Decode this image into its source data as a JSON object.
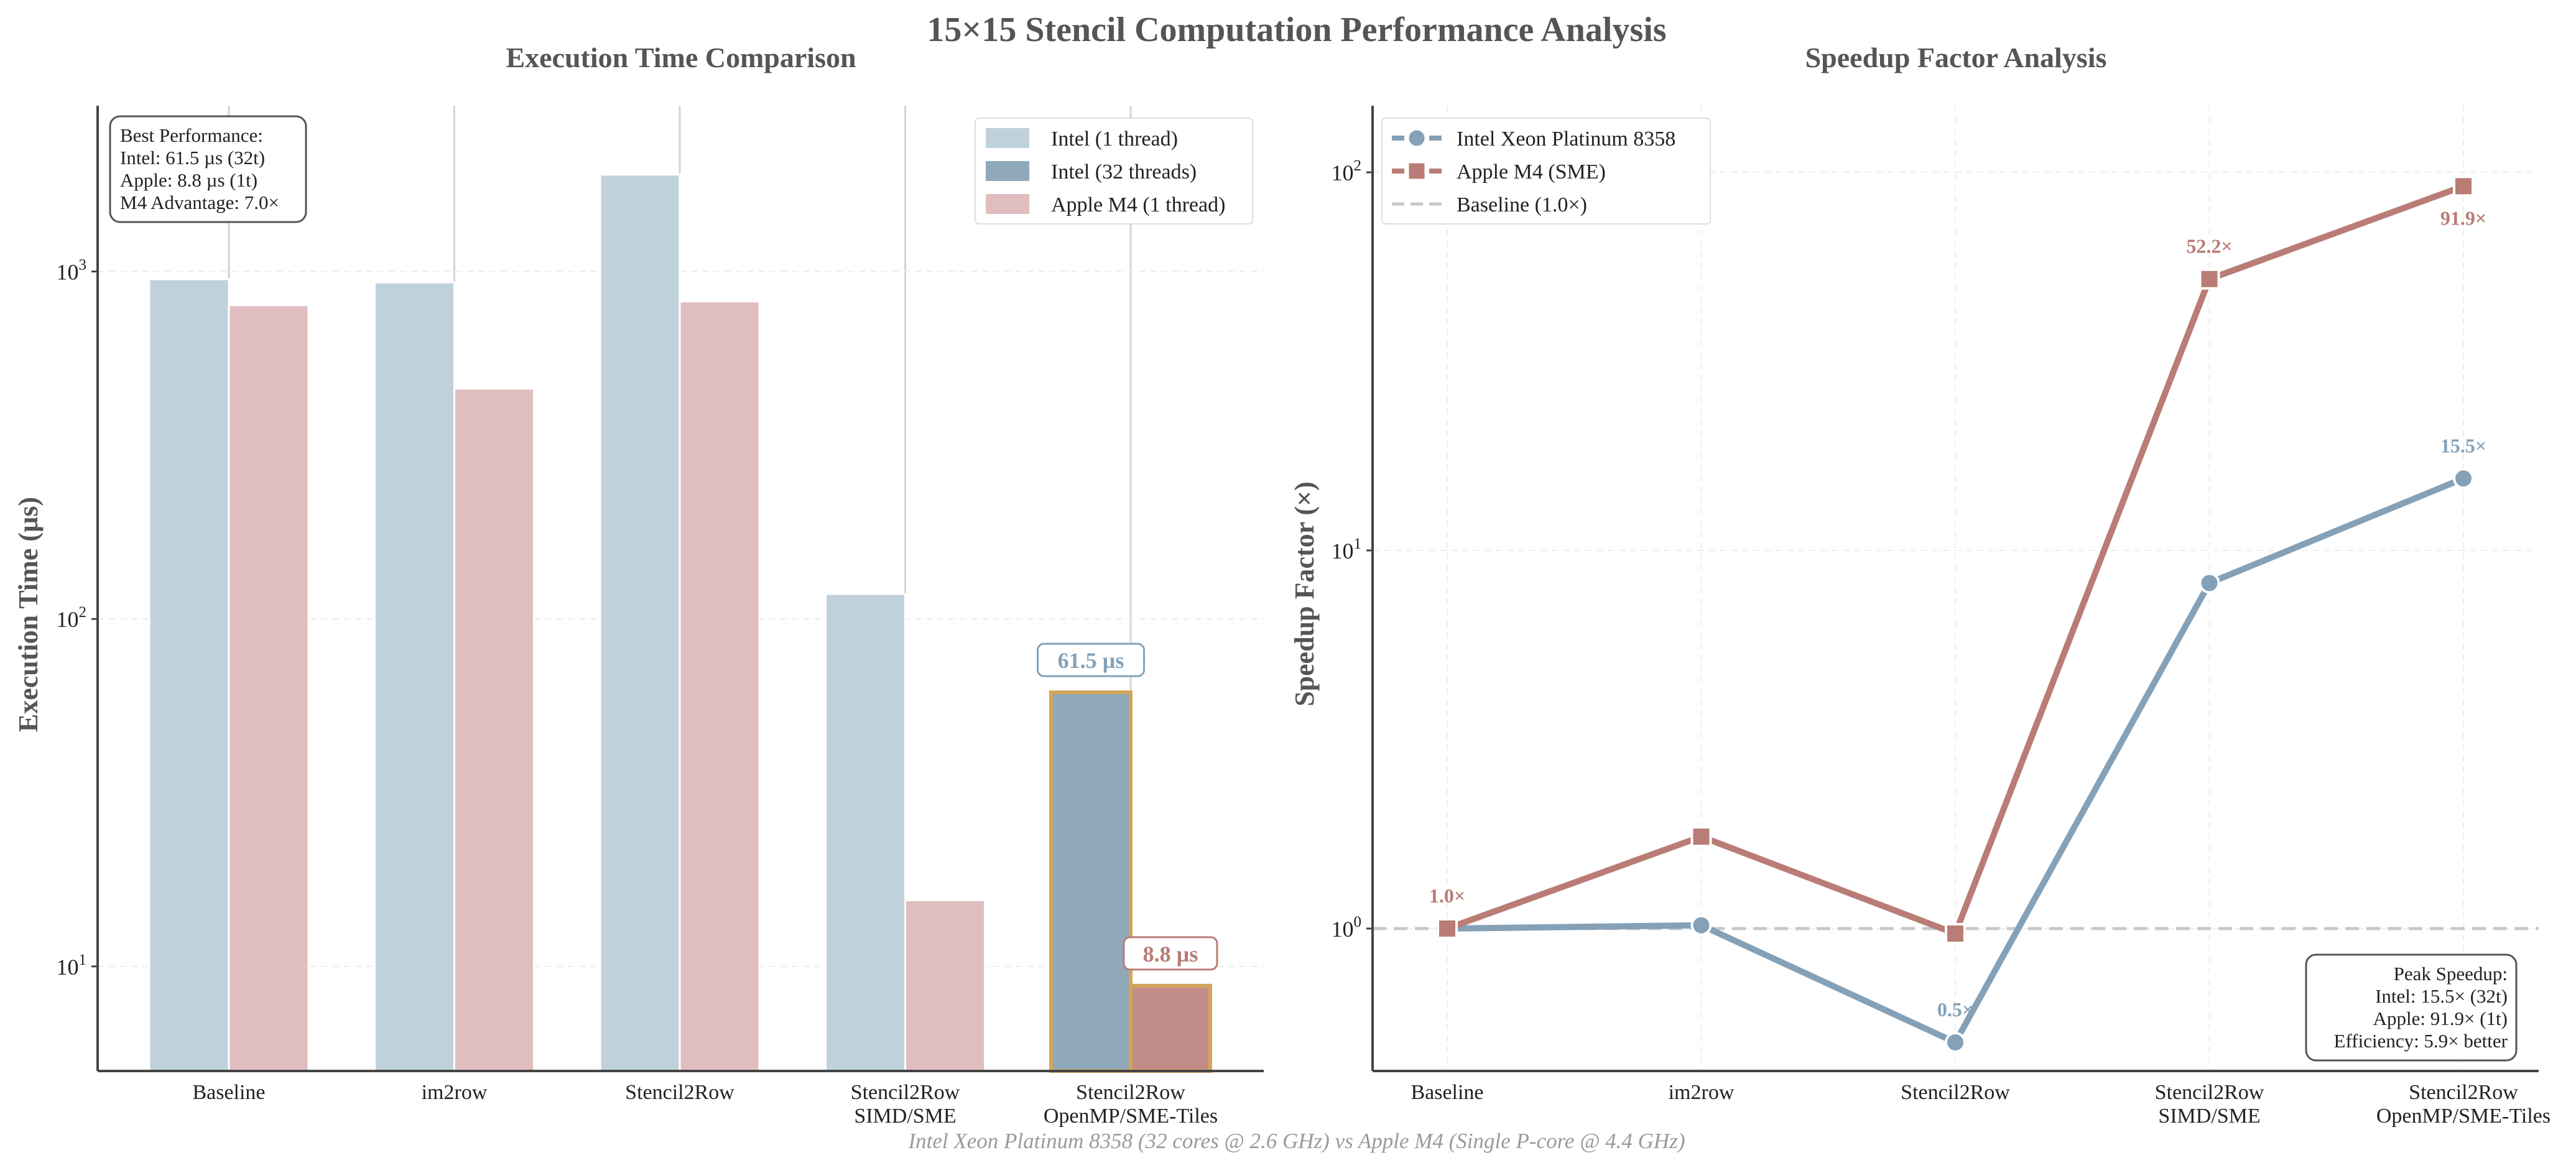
{
  "figure": {
    "title": "15×15 Stencil Computation Performance Analysis",
    "footer": "Intel Xeon Platinum 8358 (32 cores @ 2.6 GHz) vs Apple M4 (Single P-core @ 4.4 GHz)"
  },
  "colors": {
    "intel_1t": "#bfd2dc",
    "intel_32t": "#8fa9bb",
    "apple": "#e0bdbe",
    "apple_best": "#c28c88",
    "highlight_edge": "#d4a45a",
    "intel_line": "#84a1b8",
    "apple_line": "#b97c76",
    "baseline": "#c8c8c8",
    "axis": "#444444",
    "text": "#222222",
    "title": "#555555"
  },
  "chart_data": [
    {
      "type": "bar",
      "title": "Execution Time Comparison",
      "xlabel": "",
      "ylabel": "Execution Time (µs)",
      "yscale": "log",
      "ylim": [
        5,
        3000
      ],
      "grid": true,
      "legend_position": "upper-right",
      "categories": [
        "Baseline",
        "im2row",
        "Stencil2Row",
        "Stencil2Row\nSIMD/SME",
        "Stencil2Row\nOpenMP/SME-Tiles"
      ],
      "yticks": [
        {
          "value": 10,
          "base": "10",
          "exp": "1"
        },
        {
          "value": 100,
          "base": "10",
          "exp": "2"
        },
        {
          "value": 1000,
          "base": "10",
          "exp": "3"
        }
      ],
      "series": [
        {
          "name": "Intel (1 thread)",
          "values": [
            950,
            930,
            1900,
            118,
            null
          ]
        },
        {
          "name": "Intel (32 threads)",
          "values": [
            null,
            null,
            null,
            null,
            61.5
          ]
        },
        {
          "name": "Apple M4 (1 thread)",
          "values": [
            800,
            460,
            820,
            15.5,
            8.8
          ]
        }
      ],
      "data_labels": [
        {
          "series": 1,
          "category": 4,
          "text": "61.5 µs"
        },
        {
          "series": 2,
          "category": 4,
          "text": "8.8 µs"
        }
      ],
      "annotation_box": [
        "Best Performance:",
        "Intel: 61.5 µs (32t)",
        "Apple: 8.8 µs (1t)",
        "M4 Advantage: 7.0×"
      ]
    },
    {
      "type": "line",
      "title": "Speedup Factor Analysis",
      "xlabel": "",
      "ylabel": "Speedup Factor (×)",
      "yscale": "log",
      "ylim": [
        0.42,
        150
      ],
      "grid": true,
      "legend_position": "upper-left",
      "categories": [
        "Baseline",
        "im2row",
        "Stencil2Row",
        "Stencil2Row\nSIMD/SME",
        "Stencil2Row\nOpenMP/SME-Tiles"
      ],
      "yticks": [
        {
          "value": 1,
          "base": "10",
          "exp": "0"
        },
        {
          "value": 10,
          "base": "10",
          "exp": "1"
        },
        {
          "value": 100,
          "base": "10",
          "exp": "2"
        }
      ],
      "series": [
        {
          "name": "Intel Xeon Platinum 8358",
          "values": [
            1.0,
            1.02,
            0.5,
            8.2,
            15.5
          ]
        },
        {
          "name": "Apple M4 (SME)",
          "values": [
            1.0,
            1.75,
            0.97,
            52.2,
            91.9
          ]
        }
      ],
      "baseline": {
        "name": "Baseline (1.0×)",
        "value": 1.0
      },
      "data_labels": [
        {
          "series": 1,
          "category": 0,
          "text": "1.0×"
        },
        {
          "series": 0,
          "category": 2,
          "text": "0.5×"
        },
        {
          "series": 1,
          "category": 3,
          "text": "52.2×"
        },
        {
          "series": 1,
          "category": 4,
          "text": "91.9×"
        },
        {
          "series": 0,
          "category": 4,
          "text": "15.5×"
        }
      ],
      "annotation_box": [
        "Peak Speedup:",
        "Intel: 15.5× (32t)",
        "Apple: 91.9× (1t)",
        "Efficiency: 5.9× better"
      ]
    }
  ]
}
